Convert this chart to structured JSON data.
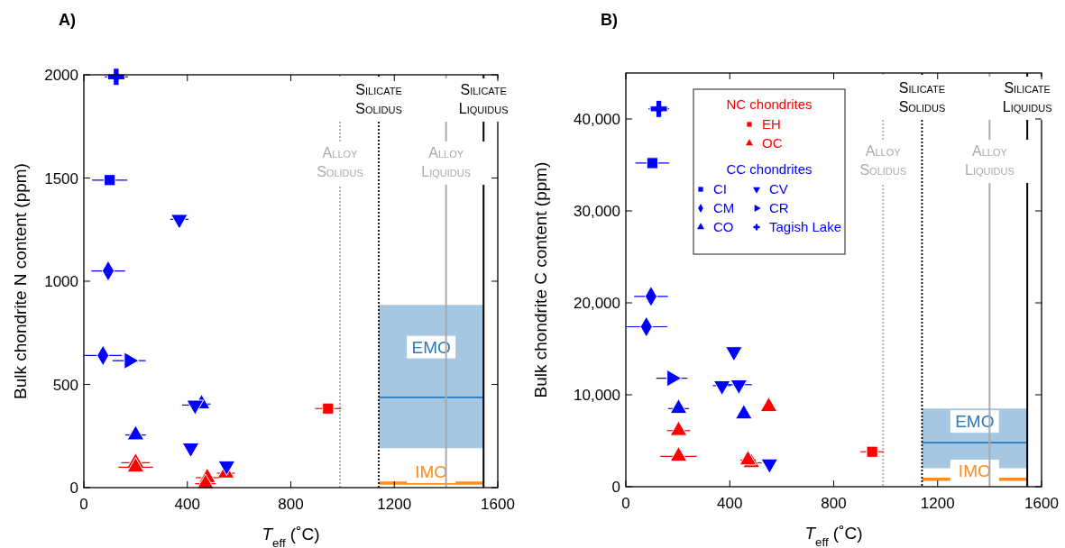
{
  "chart_data": [
    {
      "type": "scatter",
      "title": "A)",
      "xlabel": "T$_{eff}$ (˚C)",
      "ylabel": "Bulk chondrite N content (ppm)",
      "xlim": [
        0,
        1600
      ],
      "xticks": [
        0,
        400,
        800,
        1200,
        1600
      ],
      "ylim": [
        0,
        2000
      ],
      "yticks": [
        0,
        500,
        1000,
        1500,
        2000
      ],
      "grid": false,
      "legend": false,
      "ref_lines": [
        {
          "axis": "x",
          "value": 1140,
          "label": "Silicate Solidus",
          "color": "#000000",
          "line_style": "dotted"
        },
        {
          "axis": "x",
          "value": 1545,
          "label": "Silicate Liquidus",
          "color": "#000000",
          "line_style": "solid"
        },
        {
          "axis": "x",
          "value": 990,
          "label": "Alloy Solidus",
          "color": "#aaaaaa",
          "line_style": "dotted"
        },
        {
          "axis": "x",
          "value": 1400,
          "label": "Alloy Liquidus",
          "color": "#aaaaaa",
          "line_style": "solid"
        }
      ],
      "series": [
        {
          "color": "#ff0000",
          "marker": "square",
          "x": [
            944
          ],
          "values": [
            383
          ],
          "xerrors": [
            50
          ]
        },
        {
          "color": "#ff0000",
          "marker": "triangle",
          "x": [
            200,
            200,
            549,
            477,
            470
          ],
          "values": [
            121,
            99,
            70,
            48,
            19
          ],
          "xerrors": [
            55,
            67,
            35,
            45,
            40
          ]
        },
        {
          "color": "#0000ff",
          "marker": "square",
          "x": [
            100
          ],
          "values": [
            1490
          ],
          "xerrors": [
            68
          ]
        },
        {
          "color": "#0000ff",
          "marker": "diamond",
          "x": [
            94,
            74
          ],
          "values": [
            1050,
            640
          ],
          "xerrors": [
            65,
            72
          ]
        },
        {
          "color": "#0000ff",
          "marker": "triangle",
          "x": [
            455,
            200
          ],
          "values": [
            405,
            255
          ],
          "xerrors": [
            35,
            40
          ]
        },
        {
          "color": "#0000ff",
          "marker": "triangle-down",
          "x": [
            369,
            430,
            413,
            552
          ],
          "values": [
            1300,
            400,
            193,
            106
          ],
          "xerrors": [
            35,
            50,
            null,
            null
          ]
        },
        {
          "color": "#0000ff",
          "marker": "triangle-right",
          "x": [
            175
          ],
          "values": [
            615
          ],
          "xerrors": [
            64
          ]
        },
        {
          "color": "#0000ff",
          "marker": "cross",
          "x": [
            125
          ],
          "values": [
            1990
          ],
          "xerrors": [
            45
          ]
        },
        {
          "name": "EMO",
          "type": "line",
          "color": "#2a7ab9",
          "x": [
            1140,
            1545
          ],
          "values": [
            437,
            437
          ],
          "lower": [
            191,
            191
          ],
          "upper": [
            885,
            885
          ]
        },
        {
          "name": "IMO",
          "type": "line",
          "color": "#ff8c1a",
          "x": [
            1140,
            1545
          ],
          "values": [
            22,
            22
          ]
        }
      ]
    },
    {
      "type": "scatter",
      "title": "B)",
      "xlabel": "T$_{eff}$ (˚C)",
      "ylabel": "Bulk chondrite C content (ppm)",
      "xlim": [
        0,
        1600
      ],
      "xticks": [
        0,
        400,
        800,
        1200,
        1600
      ],
      "ylim": [
        0,
        45000
      ],
      "yticks": [
        0,
        {
          "value": 10000,
          "label": "10,000"
        },
        {
          "value": 20000,
          "label": "20,000"
        },
        {
          "value": 30000,
          "label": "30,000"
        },
        {
          "value": 40000,
          "label": "40,000"
        }
      ],
      "grid": false,
      "legend": "top left",
      "annotations": [
        "NC chondrites",
        "CC chondrites"
      ],
      "ref_lines": [
        {
          "axis": "x",
          "value": 1140,
          "label": "Silicate Solidus",
          "color": "#000000",
          "line_style": "dotted"
        },
        {
          "axis": "x",
          "value": 1545,
          "label": "Silicate Liquidus",
          "color": "#000000",
          "line_style": "solid"
        },
        {
          "axis": "x",
          "value": 990,
          "label": "Alloy Solidus",
          "color": "#aaaaaa",
          "line_style": "dotted"
        },
        {
          "axis": "x",
          "value": 1400,
          "label": "Alloy Liquidus",
          "color": "#aaaaaa",
          "line_style": "solid"
        }
      ],
      "series": [
        {
          "name": "EH",
          "color": "#ff0000",
          "marker": "square",
          "x": [
            948
          ],
          "values": [
            3800
          ],
          "xerrors": [
            45
          ]
        },
        {
          "name": "OC",
          "color": "#ff0000",
          "marker": "triangle",
          "x": [
            550,
            203,
            203,
            483,
            470
          ],
          "values": [
            8700,
            6100,
            3300,
            2600,
            2900
          ],
          "xerrors": [
            null,
            45,
            70,
            40,
            30
          ]
        },
        {
          "name": "CI",
          "color": "#0000ff",
          "marker": "square",
          "x": [
            102
          ],
          "values": [
            35200
          ],
          "xerrors": [
            65
          ]
        },
        {
          "name": "CM",
          "color": "#0000ff",
          "marker": "diamond",
          "x": [
            97,
            79
          ],
          "values": [
            20700,
            17400
          ],
          "xerrors": [
            65,
            80
          ]
        },
        {
          "name": "CO",
          "color": "#0000ff",
          "marker": "triangle",
          "x": [
            203,
            454
          ],
          "values": [
            8500,
            7900
          ],
          "xerrors": [
            40,
            null
          ]
        },
        {
          "name": "CV",
          "color": "#0000ff",
          "marker": "triangle-down",
          "x": [
            416,
            370,
            435,
            553
          ],
          "values": [
            14700,
            11000,
            11100,
            2500
          ],
          "xerrors": [
            null,
            35,
            50,
            null
          ]
        },
        {
          "name": "CR",
          "color": "#0000ff",
          "marker": "triangle-right",
          "x": [
            177
          ],
          "values": [
            11800
          ],
          "xerrors": [
            60
          ]
        },
        {
          "name": "Tagish Lake",
          "color": "#0000ff",
          "marker": "cross",
          "x": [
            127
          ],
          "values": [
            41100
          ],
          "xerrors": [
            40
          ]
        },
        {
          "name": "EMO",
          "type": "line",
          "color": "#2a7ab9",
          "x": [
            1140,
            1545
          ],
          "values": [
            4800,
            4800
          ],
          "lower": [
            2000,
            2000
          ],
          "upper": [
            8500,
            8500
          ]
        },
        {
          "name": "IMO",
          "type": "line",
          "color": "#ff8c1a",
          "x": [
            1140,
            1545
          ],
          "values": [
            800,
            800
          ]
        }
      ]
    }
  ]
}
